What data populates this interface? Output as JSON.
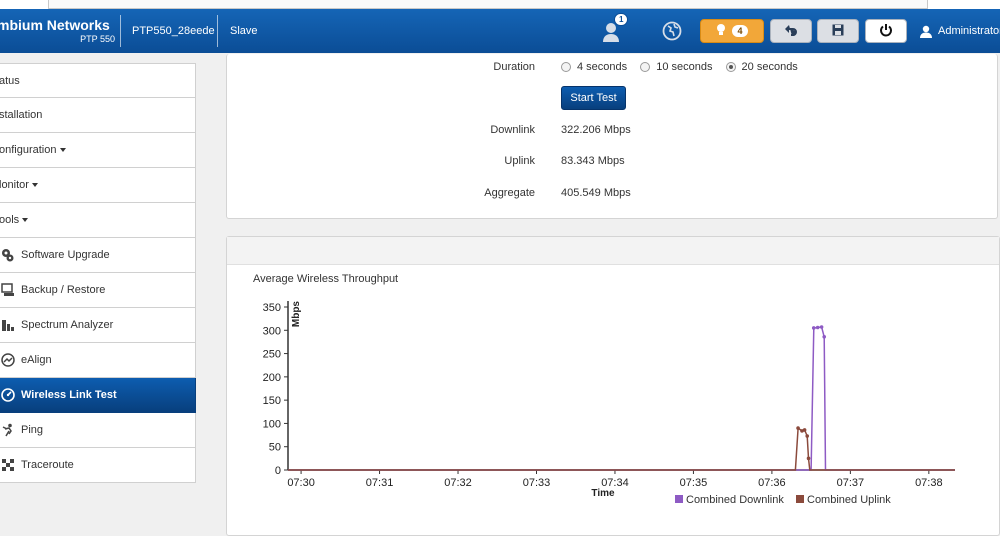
{
  "header": {
    "brand": "mbium Networks",
    "model": "PTP 550",
    "device_name": "PTP550_28eede",
    "role": "Slave",
    "user_badge_count": "1",
    "alarm_count": "4",
    "user": "Administrator"
  },
  "sidebar": {
    "items": [
      {
        "label": "atus"
      },
      {
        "label": "stallation"
      },
      {
        "label": "onfiguration"
      },
      {
        "label": "lonitor"
      },
      {
        "label": "ools"
      },
      {
        "label": "Software Upgrade"
      },
      {
        "label": "Backup / Restore"
      },
      {
        "label": "Spectrum Analyzer"
      },
      {
        "label": "eAlign"
      },
      {
        "label": "Wireless Link Test"
      },
      {
        "label": "Ping"
      },
      {
        "label": "Traceroute"
      }
    ]
  },
  "link_test": {
    "duration_label": "Duration",
    "duration_options": [
      "4 seconds",
      "10 seconds",
      "20 seconds"
    ],
    "duration_selected": "20 seconds",
    "start_button": "Start Test",
    "downlink_label": "Downlink",
    "downlink_value": "322.206 Mbps",
    "uplink_label": "Uplink",
    "uplink_value": "83.343 Mbps",
    "aggregate_label": "Aggregate",
    "aggregate_value": "405.549 Mbps"
  },
  "colors": {
    "accent": "#0b4d96",
    "downlink": "#8e5bc4",
    "uplink": "#8b4a3c"
  },
  "chart_data": {
    "type": "line",
    "title": "Average Wireless Throughput",
    "xlabel": "Time",
    "ylabel": "Mbps",
    "ylim": [
      0,
      350
    ],
    "yticks": [
      "0",
      "50",
      "100",
      "150",
      "200",
      "250",
      "300",
      "350"
    ],
    "xticks": [
      "07:30",
      "07:31",
      "07:32",
      "07:33",
      "07:34",
      "07:35",
      "07:36",
      "07:37",
      "07:38"
    ],
    "legend_position": "bottom-right",
    "series": [
      {
        "name": "Combined Downlink",
        "points": [
          [
            "07:29:50",
            0
          ],
          [
            "07:36:20",
            0
          ],
          [
            "07:36:30",
            0
          ],
          [
            "07:36:32",
            305
          ],
          [
            "07:36:35",
            306
          ],
          [
            "07:36:38",
            307
          ],
          [
            "07:36:40",
            286
          ],
          [
            "07:36:41",
            0
          ],
          [
            "07:38:20",
            0
          ]
        ]
      },
      {
        "name": "Combined Uplink",
        "points": [
          [
            "07:29:50",
            0
          ],
          [
            "07:36:18",
            0
          ],
          [
            "07:36:20",
            90
          ],
          [
            "07:36:23",
            84
          ],
          [
            "07:36:25",
            86
          ],
          [
            "07:36:27",
            73
          ],
          [
            "07:36:28",
            25
          ],
          [
            "07:36:29",
            0
          ],
          [
            "07:38:20",
            0
          ]
        ]
      }
    ]
  }
}
